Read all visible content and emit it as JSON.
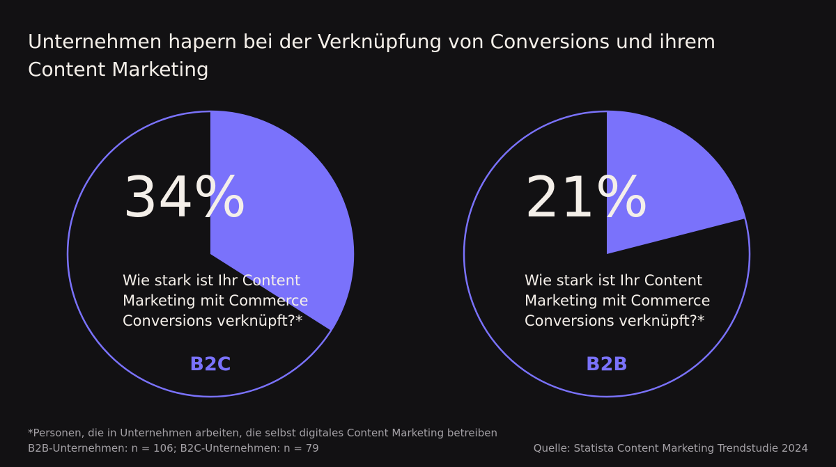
{
  "title": "Unternehmen hapern bei der Verknüpfung von Conversions und ihrem Content Marketing",
  "colors": {
    "background": "#121113",
    "accent": "#7a72fb",
    "text": "#f4efe9",
    "muted": "#a3a0a5"
  },
  "chart_data": [
    {
      "type": "pie",
      "category": "B2C",
      "value": 34,
      "value_label": "34%",
      "question": [
        "Wie stark ist Ihr Content",
        "Marketing mit Commerce",
        "Conversions verknüpft?*"
      ]
    },
    {
      "type": "pie",
      "category": "B2B",
      "value": 21,
      "value_label": "21%",
      "question": [
        "Wie stark ist Ihr Content",
        "Marketing mit Commerce",
        "Conversions verknüpft?*"
      ]
    }
  ],
  "footnote": {
    "line1": "*Personen, die in Unternehmen arbeiten, die selbst digitales Content Marketing betreiben",
    "line2": "B2B-Unternehmen: n = 106; B2C-Unternehmen: n = 79"
  },
  "source": "Quelle: Statista Content Marketing Trendstudie 2024"
}
